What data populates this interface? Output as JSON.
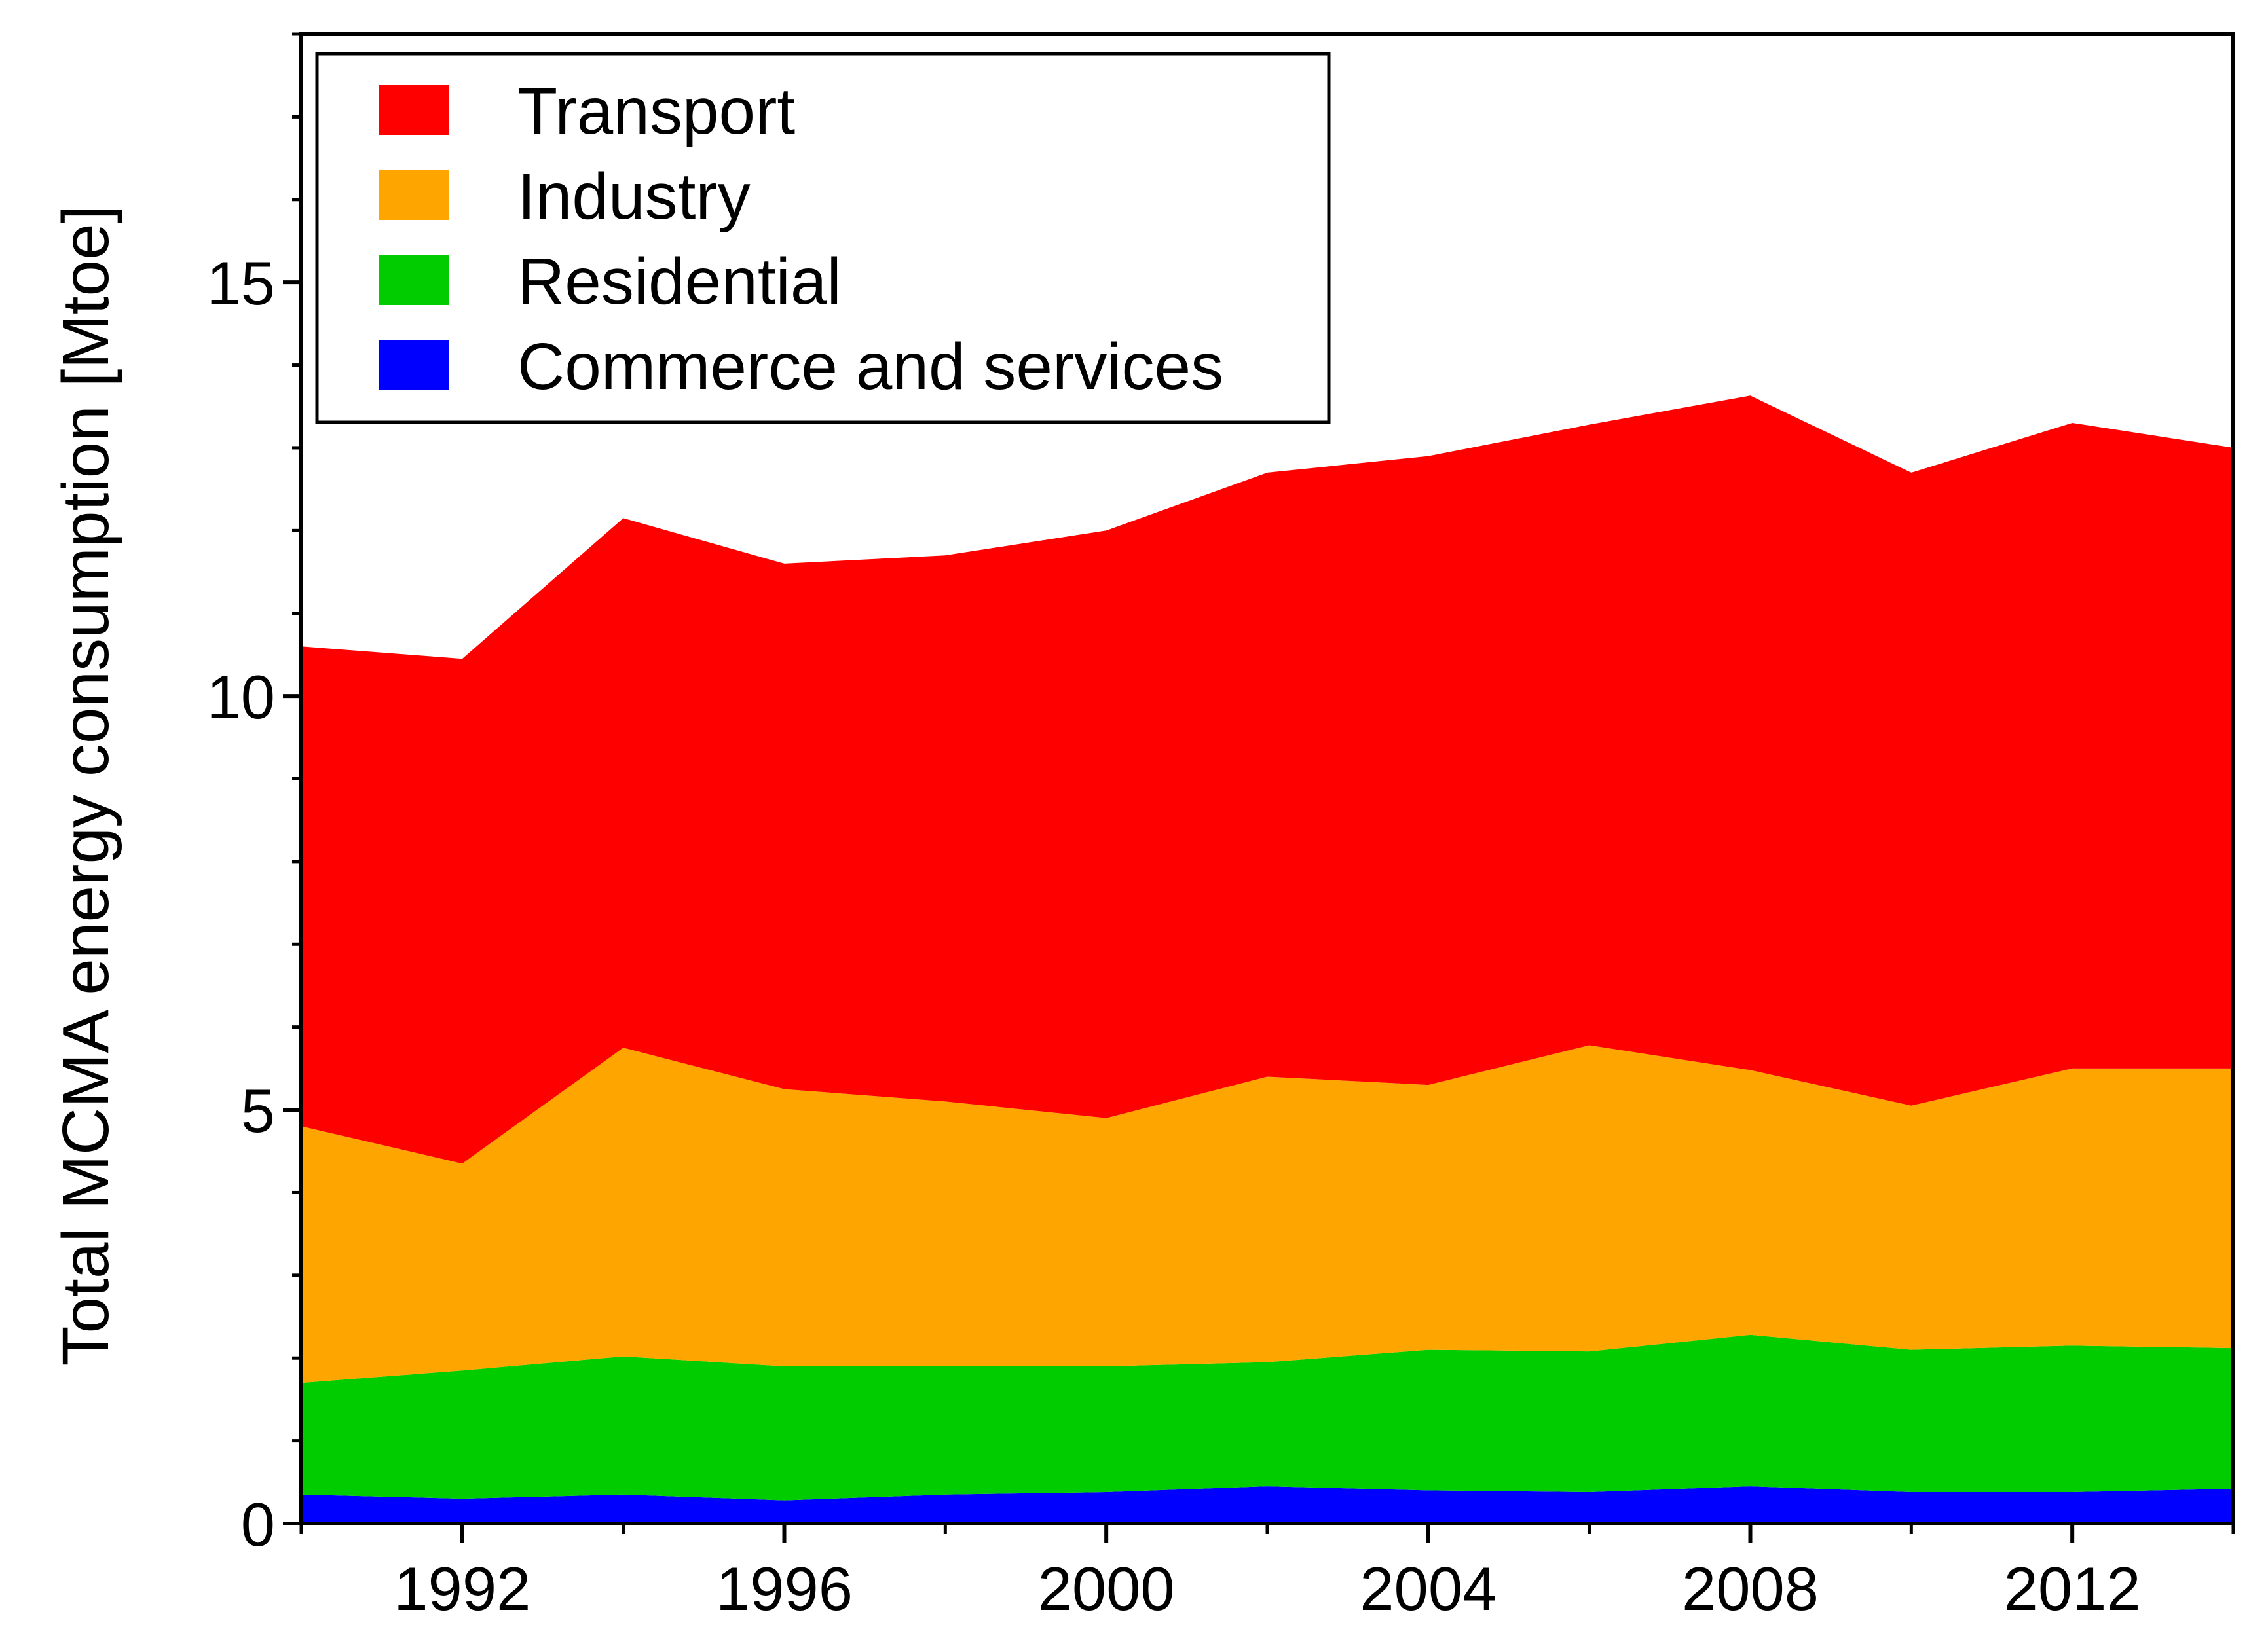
{
  "chart_data": {
    "type": "area",
    "stacked": true,
    "title": "",
    "xlabel": "",
    "ylabel": "Total MCMA energy consumption [Mtoe]",
    "x": [
      1990,
      1992,
      1994,
      1996,
      1998,
      2000,
      2002,
      2004,
      2006,
      2008,
      2010,
      2012,
      2014
    ],
    "xlim": [
      1990,
      2014
    ],
    "ylim": [
      0,
      18
    ],
    "xticks": [
      "1992",
      "1996",
      "2000",
      "2004",
      "2008",
      "2012"
    ],
    "yticks": [
      "0",
      "5",
      "10",
      "15"
    ],
    "grid": false,
    "legend_position": "top-left",
    "series": [
      {
        "name": "Commerce and services",
        "color": "#0000ff",
        "values": [
          0.35,
          0.3,
          0.35,
          0.28,
          0.35,
          0.38,
          0.45,
          0.4,
          0.38,
          0.45,
          0.38,
          0.38,
          0.42
        ]
      },
      {
        "name": "Residential",
        "color": "#00cc00",
        "values": [
          1.35,
          1.55,
          1.67,
          1.62,
          1.55,
          1.52,
          1.5,
          1.7,
          1.7,
          1.83,
          1.72,
          1.77,
          1.7
        ]
      },
      {
        "name": "Industry",
        "color": "#ffa500",
        "values": [
          3.1,
          2.5,
          3.73,
          3.35,
          3.2,
          3.0,
          3.45,
          3.2,
          3.7,
          3.2,
          2.95,
          3.35,
          3.38
        ]
      },
      {
        "name": "Transport",
        "color": "#ff0000",
        "values": [
          5.8,
          6.1,
          6.4,
          6.35,
          6.6,
          7.1,
          7.3,
          7.6,
          7.5,
          8.15,
          7.65,
          7.8,
          7.5
        ]
      }
    ],
    "legend_order": [
      "Transport",
      "Industry",
      "Residential",
      "Commerce and services"
    ]
  }
}
